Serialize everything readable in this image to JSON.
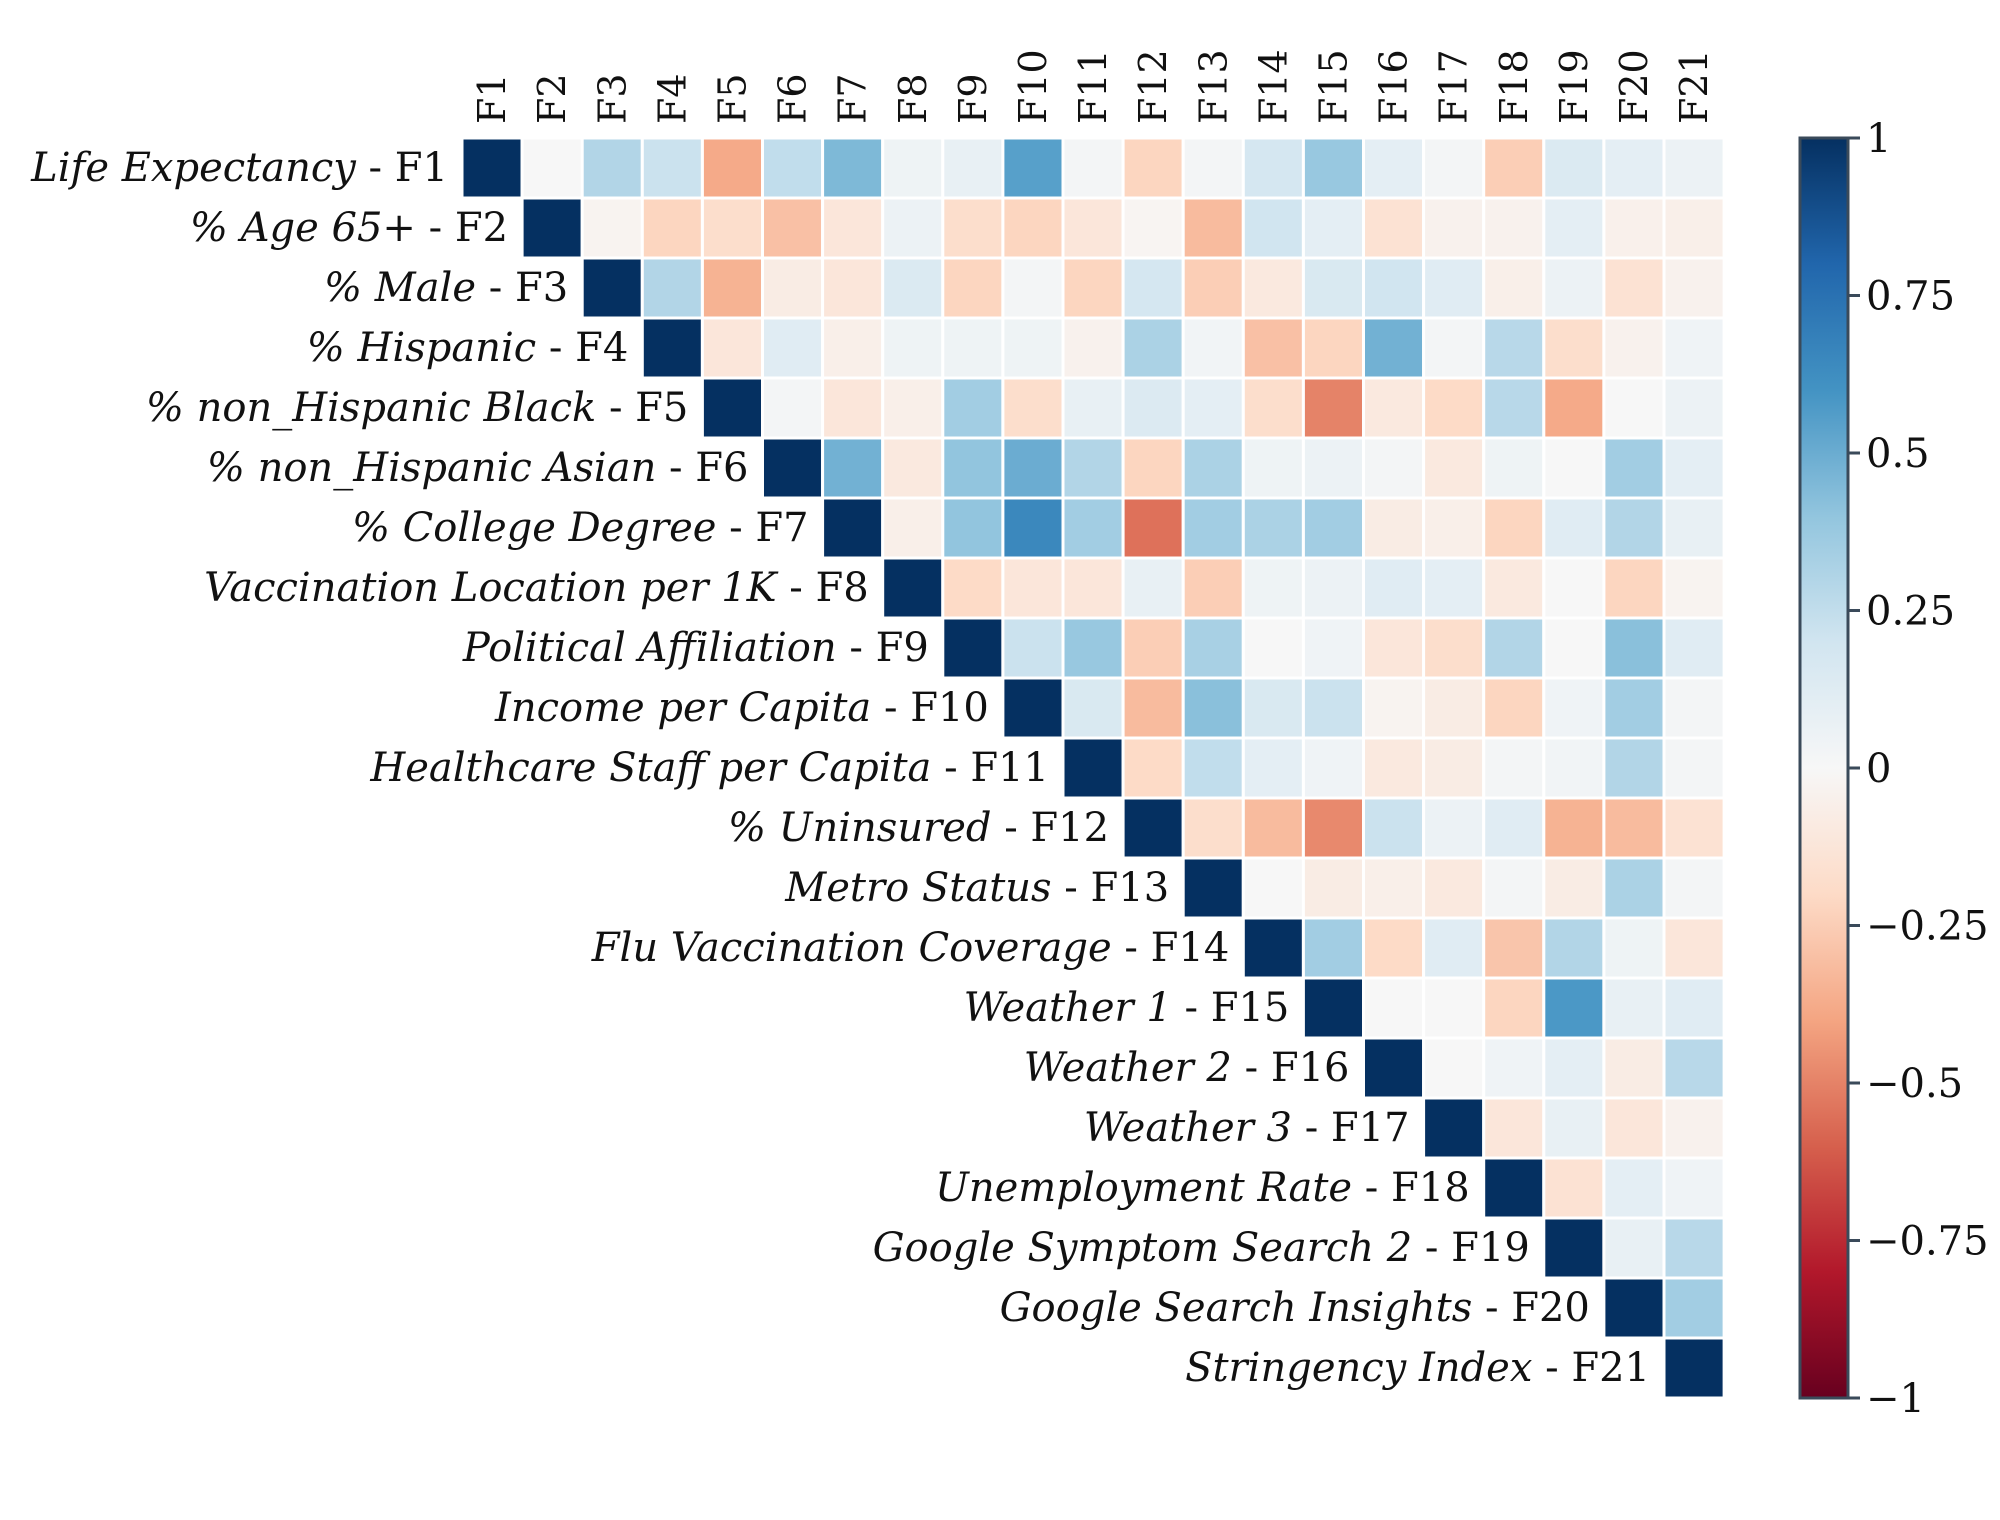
{
  "chart_data": {
    "type": "heatmap",
    "title": "",
    "layout": "upper-triangular",
    "columns": [
      "F1",
      "F2",
      "F3",
      "F4",
      "F5",
      "F6",
      "F7",
      "F8",
      "F9",
      "F10",
      "F11",
      "F12",
      "F13",
      "F14",
      "F15",
      "F16",
      "F17",
      "F18",
      "F19",
      "F20",
      "F21"
    ],
    "rows": [
      {
        "name": "Life Expectancy",
        "code": "F1"
      },
      {
        "name": "% Age 65+",
        "code": "F2"
      },
      {
        "name": "% Male",
        "code": "F3"
      },
      {
        "name": "% Hispanic",
        "code": "F4"
      },
      {
        "name": "% non_Hispanic Black",
        "code": "F5"
      },
      {
        "name": "% non_Hispanic Asian",
        "code": "F6"
      },
      {
        "name": "% College Degree",
        "code": "F7"
      },
      {
        "name": "Vaccination Location per 1K",
        "code": "F8"
      },
      {
        "name": "Political Affiliation",
        "code": "F9"
      },
      {
        "name": "Income per Capita",
        "code": "F10"
      },
      {
        "name": "Healthcare Staff per Capita",
        "code": "F11"
      },
      {
        "name": "% Uninsured",
        "code": "F12"
      },
      {
        "name": "Metro Status",
        "code": "F13"
      },
      {
        "name": "Flu Vaccination Coverage",
        "code": "F14"
      },
      {
        "name": "Weather 1",
        "code": "F15"
      },
      {
        "name": "Weather 2",
        "code": "F16"
      },
      {
        "name": "Weather 3",
        "code": "F17"
      },
      {
        "name": "Unemployment Rate",
        "code": "F18"
      },
      {
        "name": "Google Symptom Search 2",
        "code": "F19"
      },
      {
        "name": "Google Search Insights",
        "code": "F20"
      },
      {
        "name": "Stringency Index",
        "code": "F21"
      }
    ],
    "values": [
      [
        1,
        0.0,
        0.3,
        0.22,
        -0.38,
        0.25,
        0.45,
        0.05,
        0.08,
        0.55,
        0.02,
        -0.22,
        0.02,
        0.18,
        0.38,
        0.1,
        0.02,
        -0.25,
        0.15,
        0.1,
        0.06
      ],
      [
        1,
        -0.03,
        -0.22,
        -0.18,
        -0.3,
        -0.12,
        0.06,
        -0.18,
        -0.22,
        -0.12,
        -0.02,
        -0.32,
        0.2,
        0.1,
        -0.15,
        -0.04,
        -0.04,
        0.1,
        -0.05,
        -0.06
      ],
      [
        1,
        0.3,
        -0.35,
        -0.08,
        -0.12,
        0.15,
        -0.22,
        0.02,
        -0.22,
        0.18,
        -0.25,
        -0.1,
        0.16,
        0.2,
        0.12,
        -0.06,
        0.06,
        -0.15,
        -0.04
      ],
      [
        1,
        -0.12,
        0.12,
        -0.06,
        0.05,
        0.05,
        0.05,
        -0.04,
        0.32,
        0.03,
        -0.3,
        -0.22,
        0.48,
        0.02,
        0.28,
        -0.18,
        -0.04,
        0.04
      ],
      [
        1,
        0.02,
        -0.12,
        -0.06,
        0.35,
        -0.18,
        0.08,
        0.14,
        0.1,
        -0.18,
        -0.5,
        -0.1,
        -0.2,
        0.28,
        -0.38,
        0.0,
        0.06
      ],
      [
        1,
        0.48,
        -0.1,
        0.4,
        0.5,
        0.3,
        -0.22,
        0.32,
        0.05,
        0.06,
        0.02,
        -0.1,
        0.05,
        0.0,
        0.35,
        0.1
      ],
      [
        1,
        -0.06,
        0.4,
        0.65,
        0.35,
        -0.55,
        0.35,
        0.32,
        0.35,
        -0.08,
        -0.06,
        -0.22,
        0.12,
        0.3,
        0.08
      ],
      [
        1,
        -0.2,
        -0.12,
        -0.12,
        0.08,
        -0.25,
        0.05,
        0.06,
        0.12,
        0.1,
        -0.1,
        0.0,
        -0.22,
        -0.03
      ],
      [
        1,
        0.22,
        0.38,
        -0.25,
        0.33,
        0.0,
        0.04,
        -0.12,
        -0.18,
        0.3,
        0.0,
        0.42,
        0.12
      ],
      [
        1,
        0.16,
        -0.32,
        0.42,
        0.16,
        0.22,
        -0.03,
        -0.08,
        -0.22,
        0.04,
        0.35,
        0.02
      ],
      [
        1,
        -0.2,
        0.25,
        0.1,
        0.04,
        -0.1,
        -0.08,
        0.02,
        0.03,
        0.3,
        0.02
      ],
      [
        1,
        -0.18,
        -0.32,
        -0.48,
        0.22,
        0.06,
        0.12,
        -0.35,
        -0.32,
        -0.15
      ],
      [
        1,
        0.0,
        -0.08,
        -0.06,
        -0.1,
        0.02,
        -0.08,
        0.32,
        0.02
      ],
      [
        1,
        0.35,
        -0.2,
        0.12,
        -0.28,
        0.3,
        0.05,
        -0.12
      ],
      [
        1,
        0.0,
        0.0,
        -0.22,
        0.58,
        0.08,
        0.12
      ],
      [
        1,
        0.0,
        0.04,
        0.1,
        -0.08,
        0.28
      ],
      [
        1,
        -0.12,
        0.08,
        -0.12,
        -0.04
      ],
      [
        1,
        -0.15,
        0.1,
        0.04
      ],
      [
        1,
        0.08,
        0.28
      ],
      [
        1,
        0.35
      ],
      [
        1
      ]
    ],
    "colorbar": {
      "ticks": [
        "1",
        "0.75",
        "0.5",
        "0.25",
        "0",
        "−0.25",
        "−0.5",
        "−0.75",
        "−1"
      ],
      "range": [
        -1,
        1
      ],
      "colormap": "RdBu"
    }
  }
}
